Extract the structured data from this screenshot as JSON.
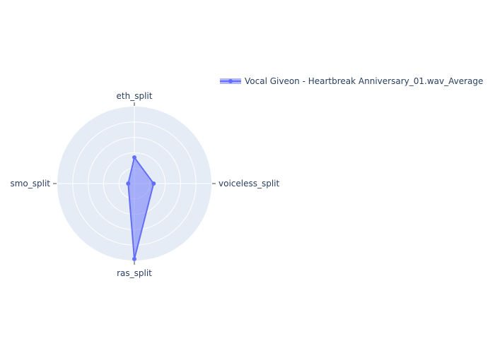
{
  "chart_data": {
    "type": "radar",
    "axes": [
      "eth_split",
      "voiceless_split",
      "ras_split",
      "smo_split"
    ],
    "radial_range": [
      0,
      1
    ],
    "grid": true,
    "legend_position": "top-right",
    "series": [
      {
        "name": "Vocal Giveon - Heartbreak Anniversary_01.wav_Average",
        "values": [
          0.34,
          0.25,
          0.98,
          0.08
        ],
        "color": "#636efa"
      }
    ]
  },
  "colors": {
    "polar_bg": "#e5ecf6",
    "grid": "#ffffff",
    "tick": "#444444",
    "text": "#2a3f5f"
  }
}
